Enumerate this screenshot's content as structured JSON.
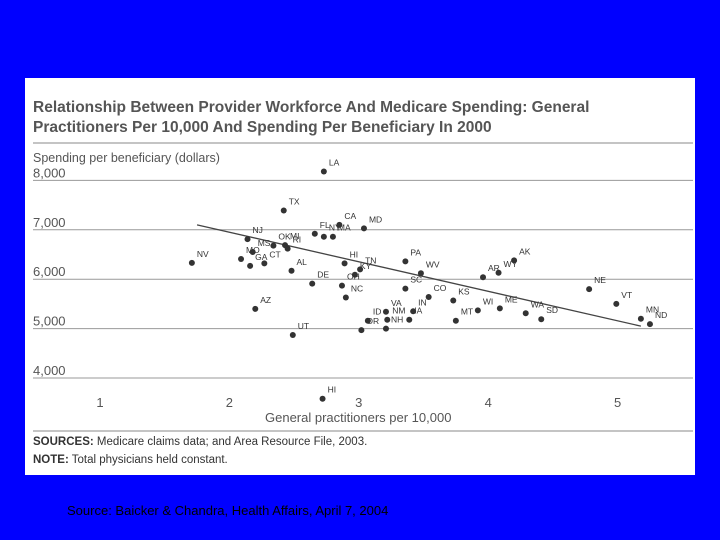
{
  "colors": {
    "background": "#0000ff",
    "panel": "#ffffff",
    "title": "#555555",
    "points": "#333333"
  },
  "chart_data": {
    "type": "scatter",
    "title_lines": [
      "Relationship Between Provider Workforce And Medicare Spending: General",
      "Practitioners Per 10,000 And Spending Per Beneficiary In 2000"
    ],
    "ylabel": "Spending per beneficiary (dollars)",
    "xlabel": "General practitioners per 10,000",
    "xlim": [
      0.5,
      5.8
    ],
    "ylim": [
      3600,
      8600
    ],
    "x_ticks": [
      {
        "value": 1,
        "label": "1"
      },
      {
        "value": 2,
        "label": "2"
      },
      {
        "value": 3,
        "label": "3"
      },
      {
        "value": 4,
        "label": "4"
      },
      {
        "value": 5,
        "label": "5"
      }
    ],
    "y_ticks": [
      {
        "value": 4000,
        "label": "4,000"
      },
      {
        "value": 5000,
        "label": "5,000"
      },
      {
        "value": 6000,
        "label": "6,000"
      },
      {
        "value": 7000,
        "label": "7,000"
      },
      {
        "value": 8000,
        "label": "8,000"
      }
    ],
    "grid": "horizontal",
    "trendline": {
      "x": [
        1.75,
        5.18
      ],
      "y": [
        7100,
        5050
      ]
    },
    "points": [
      {
        "label": "LA",
        "x": 2.73,
        "y": 8180
      },
      {
        "label": "TX",
        "x": 2.42,
        "y": 7390
      },
      {
        "label": "CA",
        "x": 2.85,
        "y": 7100
      },
      {
        "label": "MD",
        "x": 3.04,
        "y": 7030
      },
      {
        "label": "FL",
        "x": 2.66,
        "y": 6920
      },
      {
        "label": "NY",
        "x": 2.73,
        "y": 6860
      },
      {
        "label": "MA",
        "x": 2.8,
        "y": 6860
      },
      {
        "label": "NJ",
        "x": 2.14,
        "y": 6810
      },
      {
        "label": "OK",
        "x": 2.34,
        "y": 6680
      },
      {
        "label": "MI",
        "x": 2.43,
        "y": 6690
      },
      {
        "label": "RI",
        "x": 2.45,
        "y": 6620
      },
      {
        "label": "MS",
        "x": 2.18,
        "y": 6550
      },
      {
        "label": "NV",
        "x": 1.71,
        "y": 6330
      },
      {
        "label": "MO",
        "x": 2.09,
        "y": 6410
      },
      {
        "label": "GA",
        "x": 2.16,
        "y": 6270
      },
      {
        "label": "CT",
        "x": 2.27,
        "y": 6320
      },
      {
        "label": "AL",
        "x": 2.48,
        "y": 6170
      },
      {
        "label": "HI",
        "x": 2.89,
        "y": 6320
      },
      {
        "label": "TN",
        "x": 3.01,
        "y": 6200
      },
      {
        "label": "KY",
        "x": 2.97,
        "y": 6090
      },
      {
        "label": "DE",
        "x": 2.64,
        "y": 5910
      },
      {
        "label": "OH",
        "x": 2.87,
        "y": 5870
      },
      {
        "label": "NC",
        "x": 2.9,
        "y": 5630
      },
      {
        "label": "PA",
        "x": 3.36,
        "y": 6360
      },
      {
        "label": "WV",
        "x": 3.48,
        "y": 6120
      },
      {
        "label": "SC",
        "x": 3.36,
        "y": 5810
      },
      {
        "label": "CO",
        "x": 3.54,
        "y": 5640
      },
      {
        "label": "KS",
        "x": 3.73,
        "y": 5570
      },
      {
        "label": "AR",
        "x": 3.96,
        "y": 6040
      },
      {
        "label": "WY",
        "x": 4.08,
        "y": 6130
      },
      {
        "label": "AK",
        "x": 4.2,
        "y": 6380
      },
      {
        "label": "AZ",
        "x": 2.2,
        "y": 5400
      },
      {
        "label": "VA",
        "x": 3.21,
        "y": 5340
      },
      {
        "label": "IN",
        "x": 3.42,
        "y": 5350
      },
      {
        "label": "ID",
        "x": 3.07,
        "y": 5160
      },
      {
        "label": "NM",
        "x": 3.22,
        "y": 5180
      },
      {
        "label": "IA",
        "x": 3.39,
        "y": 5180
      },
      {
        "label": "UT",
        "x": 2.49,
        "y": 4870
      },
      {
        "label": "OR",
        "x": 3.02,
        "y": 4970
      },
      {
        "label": "NH",
        "x": 3.21,
        "y": 5000
      },
      {
        "label": "MT",
        "x": 3.75,
        "y": 5160
      },
      {
        "label": "WI",
        "x": 3.92,
        "y": 5370
      },
      {
        "label": "ME",
        "x": 4.09,
        "y": 5410
      },
      {
        "label": "WA",
        "x": 4.29,
        "y": 5310
      },
      {
        "label": "SD",
        "x": 4.41,
        "y": 5190
      },
      {
        "label": "NE",
        "x": 4.78,
        "y": 5800
      },
      {
        "label": "VT",
        "x": 4.99,
        "y": 5500
      },
      {
        "label": "MN",
        "x": 5.18,
        "y": 5200
      },
      {
        "label": "ND",
        "x": 5.25,
        "y": 5090
      },
      {
        "label": "HI",
        "x": 2.72,
        "y": 3580
      }
    ]
  },
  "sources": {
    "label": "SOURCES:",
    "text": " Medicare claims data; and Area Resource File, 2003."
  },
  "note": {
    "label": "NOTE:",
    "text": " Total physicians held constant."
  },
  "credit": "Source: Baicker & Chandra, Health Affairs, April 7, 2004"
}
